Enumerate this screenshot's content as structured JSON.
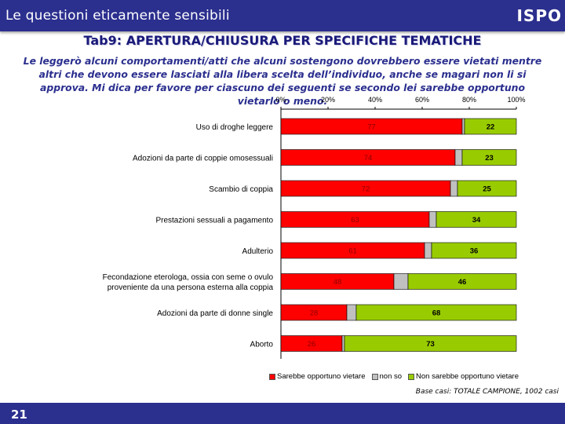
{
  "header": {
    "title": "Le questioni eticamente sensibili",
    "logo": "ISPO"
  },
  "tab_title": "Tab9: APERTURA/CHIUSURA PER SPECIFICHE TEMATICHE",
  "question_text": "Le leggerò alcuni comportamenti/atti che alcuni sostengono dovrebbero essere vietati mentre altri che devono essere lasciati alla libera scelta dell’individuo, anche se magari non li si approva. Mi dica per favore per ciascuno dei seguenti se secondo lei sarebbe opportuno vietarlo o meno.",
  "footer": {
    "page_number": "21",
    "base_note": "Base casi: TOTALE CAMPIONE, 1002 casi"
  },
  "colors": {
    "vietare": "#ff0000",
    "non_so": "#c0c0c0",
    "non_vietare": "#99cc00",
    "brand": "#2b2f8e"
  },
  "chart_data": {
    "type": "bar",
    "orientation": "horizontal-stacked-100",
    "xlim": [
      0,
      100
    ],
    "x_ticks": [
      "0%",
      "20%",
      "40%",
      "60%",
      "80%",
      "100%"
    ],
    "categories": [
      "Uso di droghe leggere",
      "Adozioni da parte di coppie omosessuali",
      "Scambio di coppia",
      "Prestazioni sessuali a pagamento",
      "Adulterio",
      "Fecondazione eterologa, ossia con seme o ovulo proveniente da una persona esterna alla coppia",
      "Adozioni da parte di donne single",
      "Aborto"
    ],
    "series": [
      {
        "name": "Sarebbe opportuno vietare",
        "values": [
          77,
          74,
          72,
          63,
          61,
          48,
          28,
          26
        ]
      },
      {
        "name": "non so",
        "values": [
          1,
          3,
          3,
          3,
          3,
          6,
          4,
          1
        ]
      },
      {
        "name": "Non sarebbe opportuno vietare",
        "values": [
          22,
          23,
          25,
          34,
          36,
          46,
          68,
          73
        ]
      }
    ],
    "legend_position": "bottom"
  }
}
